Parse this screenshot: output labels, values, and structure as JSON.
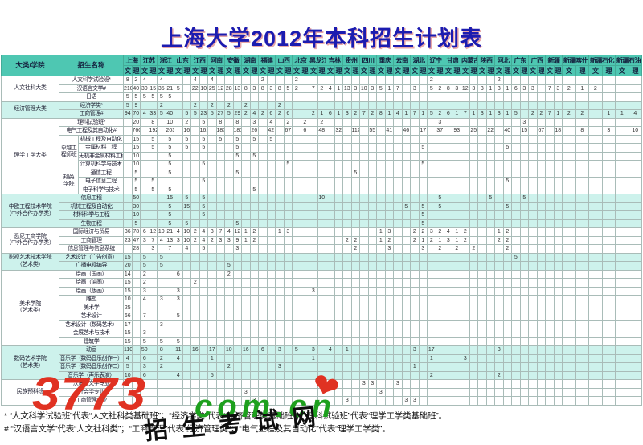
{
  "title": "上海大学2012年本科招生计划表",
  "table": {
    "corner": {
      "col1": "大类/学院",
      "col2": "招生名称"
    },
    "subcols": [
      "文",
      "理"
    ],
    "provinces": [
      {
        "name": "上海"
      },
      {
        "name": "江苏"
      },
      {
        "name": "浙江"
      },
      {
        "name": "山东"
      },
      {
        "name": "江西"
      },
      {
        "name": "河南"
      },
      {
        "name": "安徽"
      },
      {
        "name": "湖南"
      },
      {
        "name": "福建"
      },
      {
        "name": "山西"
      },
      {
        "name": "北京"
      },
      {
        "name": "黑龙江"
      },
      {
        "name": "吉林"
      },
      {
        "name": "贵州"
      },
      {
        "name": "四川"
      },
      {
        "name": "重庆"
      },
      {
        "name": "云南"
      },
      {
        "name": "湖北"
      },
      {
        "name": "辽宁"
      },
      {
        "name": "甘肃"
      },
      {
        "name": "内蒙古"
      },
      {
        "name": "陕西"
      },
      {
        "name": "河北"
      },
      {
        "name": "广东"
      },
      {
        "name": "广西"
      },
      {
        "name": "新疆"
      },
      {
        "name": "新疆喀什",
        "wide": true
      },
      {
        "name": "新疆石化",
        "wide": true
      },
      {
        "name": "新疆石油",
        "wide": true
      }
    ],
    "groups": [
      {
        "name": "人文社科大类",
        "tint": false,
        "rows": [
          {
            "major": "人文科学试验班*",
            "cells": {
              "上海文": 8,
              "上海理": 2,
              "江苏文": 4,
              "浙江文": 4,
              "江西文": 4,
              "河南文": 4,
              "福建文": 2,
              "北京文": 2,
              "辽宁文": 2,
              "河北文": 2
            }
          },
          {
            "major": "汉语言文学#",
            "cells": {
              "上海文": 210,
              "上海理": 40,
              "江苏文": 30,
              "江苏理": 15,
              "浙江文": 35,
              "浙江理": 21,
              "山东文": 5,
              "江西文": 22,
              "江西理": 10,
              "河南文": 25,
              "河南理": 12,
              "安徽文": 28,
              "安徽理": 13,
              "湖南文": 8,
              "湖南理": 3,
              "福建文": 8,
              "福建理": 3,
              "山西文": 8,
              "山西理": 5,
              "北京文": 2,
              "黑龙江文": 7,
              "黑龙江理": 2,
              "吉林文": 4,
              "吉林理": 1,
              "贵州文": 13,
              "贵州理": 3,
              "四川文": 10,
              "四川理": 3,
              "重庆文": 5,
              "重庆理": 1,
              "云南文": 7,
              "湖北文": 3,
              "辽宁文": 5,
              "辽宁理": 2,
              "甘肃文": 8,
              "甘肃理": 3,
              "内蒙古文": 12,
              "内蒙古理": 3,
              "陕西文": 3,
              "陕西理": 1,
              "河北文": 3,
              "河北理": 1,
              "广东文": 6,
              "广东理": 3,
              "广西文": 3,
              "新疆文": 7,
              "新疆理": 3,
              "新疆喀什文": 2,
              "新疆喀什理": 1,
              "新疆石化文": 2
            }
          },
          {
            "major": "日语",
            "cells": {
              "上海文": 5,
              "上海理": 5,
              "江苏文": 5,
              "江苏理": 5,
              "浙江文": 5,
              "浙江理": 5
            }
          }
        ]
      },
      {
        "name": "经济管理大类",
        "tint": true,
        "rows": [
          {
            "major": "经济学类*",
            "cells": {
              "上海文": 5,
              "上海理": 9,
              "浙江文": 2,
              "江西文": 2,
              "河南文": 2,
              "安徽文": 2,
              "湖南文": 2,
              "山西文": 2
            }
          },
          {
            "major": "工商管理#",
            "cells": {
              "上海文": 94,
              "上海理": 70,
              "江苏文": 4,
              "江苏理": 33,
              "浙江文": 5,
              "浙江理": 40,
              "山东理": 5,
              "江西文": 5,
              "江西理": 23,
              "河南文": 5,
              "河南理": 27,
              "安徽文": 5,
              "安徽理": 29,
              "湖南文": 2,
              "湖南理": 4,
              "福建文": 2,
              "福建理": 6,
              "山西文": 2,
              "山西理": 6,
              "黑龙江文": 2,
              "黑龙江理": 1,
              "吉林文": 6,
              "吉林理": 1,
              "贵州文": 3,
              "贵州理": 2,
              "四川文": 7,
              "四川理": 2,
              "重庆文": 8,
              "重庆理": 1,
              "云南文": 4,
              "云南理": 1,
              "湖北文": 7,
              "湖北理": 1,
              "辽宁文": 5,
              "辽宁理": 2,
              "甘肃文": 6,
              "甘肃理": 1,
              "内蒙古文": 7,
              "内蒙古理": 1,
              "陕西文": 3,
              "陕西理": 1,
              "河北文": 3,
              "河北理": 1,
              "广东文": 5,
              "广西文": 2,
              "广西理": 2,
              "新疆文": 7,
              "新疆理": 1,
              "新疆喀什文": 2,
              "新疆喀什理": 2,
              "新疆石化理": 1,
              "新疆石油文": 1,
              "新疆石油理": 4
            }
          }
        ]
      },
      {
        "name": "理学工学大类",
        "tint": false,
        "subs": [
          {
            "label": "卓越工\n程师班",
            "start": 2,
            "span": 4
          },
          {
            "label": "翔英\n学院",
            "start": 6,
            "span": 3
          }
        ],
        "rows": [
          {
            "major": "理科试验班*",
            "cells": {
              "上海理": 20,
              "江苏理": 8,
              "浙江理": 10,
              "山东理": 2,
              "江西理": 5,
              "河南理": 8,
              "安徽理": 8,
              "湖南理": 3,
              "福建理": 4,
              "山西理": 2,
              "北京理": 2,
              "黑龙江理": 2,
              "辽宁理": 3,
              "广东理": 3
            }
          },
          {
            "major": "电气工程及其自动化#",
            "cells": {
              "上海理": 760,
              "江苏理": 192,
              "浙江理": 203,
              "山东理": 16,
              "江西理": 161,
              "河南理": 187,
              "安徽理": 181,
              "湖南理": 26,
              "福建理": 42,
              "山西理": 67,
              "北京理": 6,
              "黑龙江理": 48,
              "吉林理": 32,
              "贵州理": 112,
              "四川理": 55,
              "重庆理": 41,
              "云南理": 46,
              "湖北理": 17,
              "辽宁理": 37,
              "甘肃理": 93,
              "内蒙古理": 25,
              "陕西理": 22,
              "河北理": 40,
              "广东理": 15,
              "广西理": 67,
              "新疆理": 18,
              "新疆喀什理": 8,
              "新疆石化理": 3,
              "新疆石油理": 10
            }
          },
          {
            "major": "机械工程及自动化",
            "cells": {
              "上海理": 15,
              "江苏理": 5,
              "浙江理": 5,
              "山东理": 5,
              "江西理": 5,
              "河南理": 5,
              "安徽理": 5,
              "湖南理": 5,
              "福建理": 5
            }
          },
          {
            "major": "金属材料工程",
            "cells": {
              "上海理": 15,
              "江苏理": 5,
              "浙江理": 5,
              "山东理": 5,
              "江西理": 5,
              "安徽理": 5,
              "湖北理": 5,
              "河北理": 5
            }
          },
          {
            "major": "无机非金属材料工程",
            "cells": {
              "上海理": 10,
              "浙江理": 5,
              "安徽理": 5,
              "湖南理": 5
            }
          },
          {
            "major": "计算机科学与技术",
            "cells": {
              "上海理": 10,
              "浙江理": 5,
              "江西理": 5,
              "山西理": 5,
              "湖北理": 5
            }
          },
          {
            "major": "通信工程",
            "cells": {
              "上海理": 5,
              "浙江理": 5,
              "安徽理": 5,
              "贵州理": 5
            }
          },
          {
            "major": "电子信息工程",
            "cells": {
              "上海理": 5,
              "江苏理": 5,
              "江西理": 5,
              "河北理": 5
            }
          },
          {
            "major": "电子科学与技术",
            "cells": {
              "上海理": 5,
              "江苏理": 5,
              "浙江理": 5,
              "湖南理": 5
            }
          }
        ]
      },
      {
        "name": "中欧工程技术学院\n（中外合作办学类）",
        "tint": true,
        "rows": [
          {
            "major": "信息工程",
            "cells": {
              "上海理": 50,
              "浙江理": 15,
              "山东理": 5,
              "江西理": 5,
              "黑龙江理": 10,
              "辽宁理": 5,
              "陕西理": 5,
              "广东理": 5
            }
          },
          {
            "major": "机械工程及自动化",
            "cells": {
              "上海理": 30,
              "浙江理": 5,
              "山东理": 15,
              "江西理": 5,
              "云南理": 5,
              "湖北理": 5,
              "辽宁理": 5,
              "河北理": 5
            }
          },
          {
            "major": "材料科学与工程",
            "cells": {
              "上海理": 10,
              "浙江理": 5,
              "江西理": 5,
              "湖北理": 5
            }
          },
          {
            "major": "生物工程",
            "cells": {
              "上海理": 5,
              "浙江理": 5,
              "山东理": 5,
              "安徽理": 5,
              "湖北理": 5
            }
          }
        ]
      },
      {
        "name": "悉尼工商学院\n（中外合作办学类）",
        "tint": false,
        "rows": [
          {
            "major": "国际经济与贸易",
            "cells": {
              "上海文": 36,
              "上海理": 78,
              "江苏文": 6,
              "江苏理": 12,
              "浙江文": 10,
              "浙江理": 21,
              "山东文": 4,
              "山东理": 10,
              "江西文": 2,
              "江西理": 4,
              "河南文": 3,
              "河南理": 7,
              "安徽文": 4,
              "安徽理": 12,
              "湖南文": 1,
              "湖南理": 2,
              "山西文": 1,
              "山西理": 3,
              "重庆文": 1,
              "重庆理": 3,
              "湖北文": 2,
              "湖北理": 2,
              "辽宁文": 3,
              "辽宁理": 2,
              "甘肃文": 4,
              "甘肃理": 1,
              "内蒙古文": 2,
              "河北文": 1,
              "河北理": 2
            }
          },
          {
            "major": "工商管理",
            "cells": {
              "上海文": 23,
              "上海理": 47,
              "江苏文": 3,
              "江苏理": 7,
              "浙江文": 4,
              "浙江理": 13,
              "山东文": 3,
              "山东理": 10,
              "江西文": 2,
              "江西理": 4,
              "河南文": 2,
              "河南理": 3,
              "安徽文": 3,
              "安徽理": 9,
              "湖南文": 1,
              "湖南理": 2,
              "贵州文": 2,
              "贵州理": 2,
              "重庆文": 1,
              "重庆理": 2,
              "湖北文": 2,
              "湖北理": 1,
              "辽宁文": 2,
              "辽宁理": 1,
              "甘肃文": 3,
              "甘肃理": 1,
              "内蒙古文": 2,
              "河北文": 2,
              "河北理": 2
            }
          },
          {
            "major": "信息管理与信息系统",
            "cells": {
              "上海理": 28,
              "江苏理": 3,
              "浙江理": 7,
              "山东理": 4,
              "江西理": 5,
              "安徽理": 3,
              "贵州理": 2,
              "重庆理": 3,
              "湖北理": 3,
              "辽宁理": 2,
              "甘肃理": 2,
              "内蒙古理": 2,
              "河北理": 2
            }
          }
        ]
      },
      {
        "name": "影视艺术技术学院\n（艺术类）",
        "tint": true,
        "rows": [
          {
            "major": "艺术设计（广告创意）",
            "cells": {
              "上海文": 15,
              "江苏文": 5,
              "浙江文": 5,
              "广东文": 5
            }
          },
          {
            "major": "广播电视编导",
            "cells": {
              "上海文": 20,
              "江苏文": 5,
              "浙江文": 5,
              "安徽文": 5
            }
          }
        ]
      },
      {
        "name": "美术学院\n（艺术类）",
        "tint": false,
        "rows": [
          {
            "major": "绘画（国画）",
            "cells": {
              "上海文": 14,
              "江苏文": 2,
              "山东文": 6,
              "安徽文": 2
            }
          },
          {
            "major": "绘画（油画）",
            "cells": {
              "上海文": 15,
              "江苏文": 2,
              "江西文": 2
            }
          },
          {
            "major": "绘画（版画）",
            "cells": {
              "上海文": 15,
              "江苏文": 3,
              "山东文": 3,
              "黑龙江文": 3
            }
          },
          {
            "major": "雕塑",
            "cells": {
              "上海文": 10,
              "江苏文": 4,
              "浙江文": 3,
              "山东文": 3
            }
          },
          {
            "major": "美术学",
            "cells": {
              "上海文": 25
            }
          },
          {
            "major": "艺术设计",
            "cells": {
              "上海文": 66,
              "江苏文": 7,
              "山东文": 5
            }
          },
          {
            "major": "艺术设计（数码艺术）",
            "cells": {
              "上海文": 17,
              "浙江文": 3
            }
          },
          {
            "major": "会展艺术与技术",
            "cells": {
              "上海文": 15,
              "江苏文": 3
            }
          },
          {
            "major": "建筑学",
            "cells": {
              "上海文": 15,
              "江苏文": 5,
              "浙江文": 5,
              "山东文": 5
            }
          }
        ]
      },
      {
        "name": "数码艺术学院\n（艺术类）",
        "tint": true,
        "rows": [
          {
            "major": "动画",
            "cells": {
              "上海文": 110,
              "江苏文": 50,
              "浙江文": 8,
              "山东文": 11,
              "江西文": 16,
              "河南文": 17,
              "安徽文": 10,
              "湖南文": 16,
              "福建文": 6,
              "山西文": 3,
              "北京文": 5,
              "黑龙江文": 3,
              "吉林文": 4,
              "贵州文": 1,
              "湖北文": 3,
              "辽宁文": 17,
              "河北文": 3
            }
          },
          {
            "major": "音乐学（数码音乐创作一）",
            "cells": {
              "上海文": 4,
              "江苏文": 6,
              "浙江文": 2,
              "山东文": 4,
              "河南文": 1,
              "黑龙江文": 1,
              "辽宁文": 1,
              "内蒙古文": 3
            }
          },
          {
            "major": "音乐学（数码音乐创作二）",
            "cells": {
              "上海文": 5,
              "江苏文": 3,
              "浙江文": 2,
              "安徽文": 2,
              "山西文": 3,
              "湖北文": 1
            }
          },
          {
            "major": "音乐学（声乐表演）",
            "cells": {
              "上海文": 10,
              "江苏文": 6,
              "山东文": 4,
              "河南文": 5,
              "辽宁文": 2,
              "河北文": 2
            }
          }
        ]
      },
      {
        "name": "民族预科班",
        "tint": false,
        "rows": [
          {
            "major": "汉语言文学专业",
            "cells": {
              "四川文": 3,
              "四川理": 3,
              "云南文": 3
            }
          },
          {
            "major": "社会学专业",
            "cells": {
              "湖南文": 3,
              "重庆文": 3
            }
          },
          {
            "major": "工商管理专业",
            "cells": {
              "湖南理": 3,
              "贵州文": 3,
              "云南理": 3,
              "湖北文": 3
            }
          }
        ]
      }
    ]
  },
  "notes": [
    "* “人文科学试验班”代表“人文社科类基础班”；“经济学类”代表“经济管理类基础班”；“理科试验班”代表“理学工学类基础班”。",
    "# “汉语言文学”代表“人文社科类”；“工商管理”代表“经济管理类”；“电气工程及其自动化”代表“理学工学类”。"
  ],
  "watermark": {
    "brand": "3773",
    "heart": "❤",
    "domain": "com.cn",
    "site": "招生考试网"
  },
  "colors": {
    "header_teal": "#4ec7b2",
    "band_teal": "#cdf2ec",
    "title_blue": "#1c1cb0",
    "grid_line": "#a9bcb8",
    "watermark_red": "#e03222",
    "watermark_green": "#1da01d"
  }
}
